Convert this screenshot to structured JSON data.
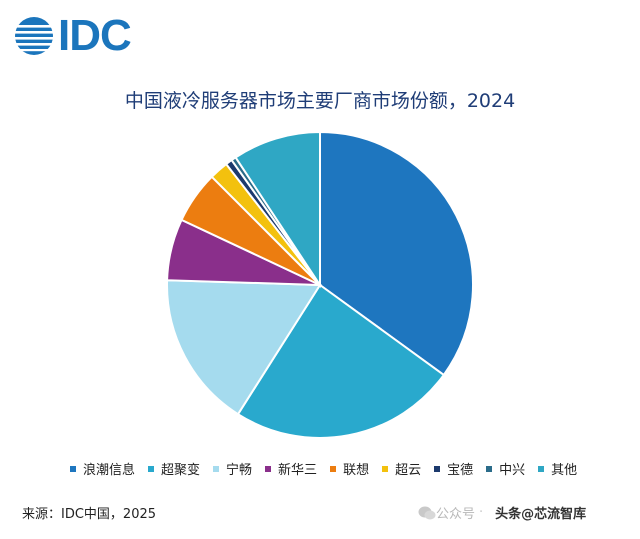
{
  "logo": {
    "text": "IDC"
  },
  "chart_data": {
    "type": "pie",
    "title": "中国液冷服务器市场主要厂商市场份额，2024",
    "categories": [
      "浪潮信息",
      "超聚变",
      "宁畅",
      "新华三",
      "联想",
      "超云",
      "宝德",
      "中兴",
      "其他"
    ],
    "values": [
      35.0,
      24.0,
      16.5,
      6.5,
      5.5,
      2.0,
      0.7,
      0.5,
      9.3
    ],
    "colors": [
      "#1e76bf",
      "#29a9cd",
      "#a5dbee",
      "#8a2f8b",
      "#ec7d10",
      "#f3c10e",
      "#1c3a6d",
      "#2b6c8a",
      "#2fa7c4"
    ],
    "legend_position": "bottom",
    "start_angle_deg": 0,
    "direction": "clockwise"
  },
  "footer": {
    "source": "来源：IDC中国，2025",
    "watermark_prefix": "公众号",
    "watermark_dot": "·",
    "watermark_name": "头条@芯流智库"
  }
}
